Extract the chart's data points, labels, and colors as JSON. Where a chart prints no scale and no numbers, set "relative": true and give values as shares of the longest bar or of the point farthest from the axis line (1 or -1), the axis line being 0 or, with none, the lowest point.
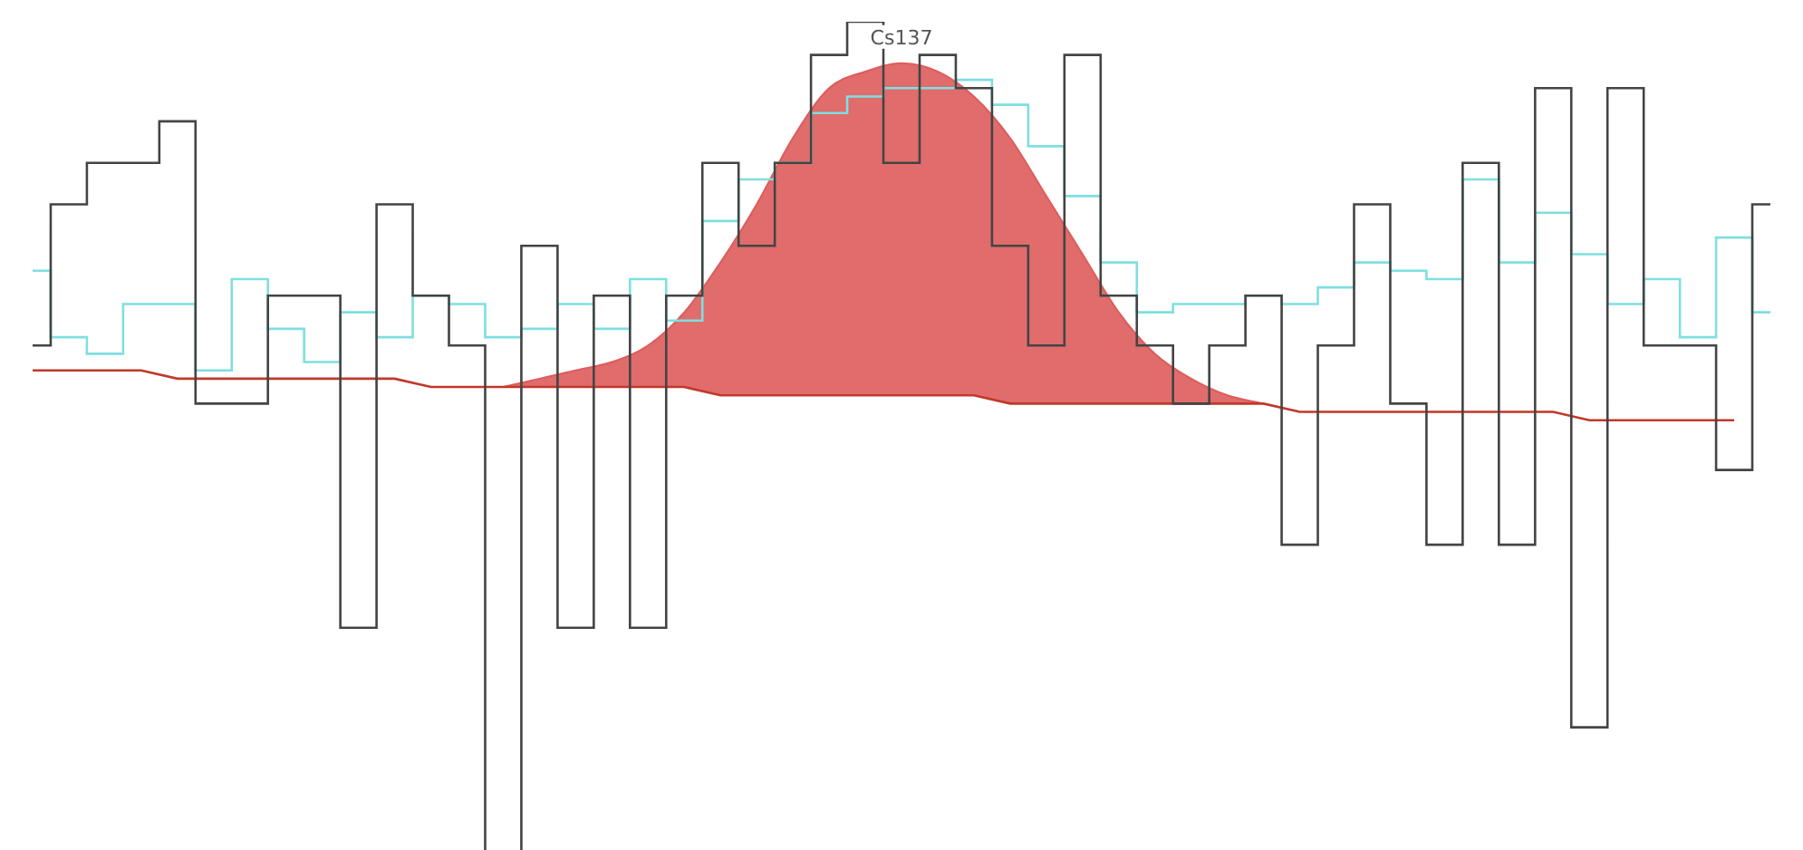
{
  "chart_data": {
    "type": "step",
    "relative": true,
    "categories": [
      null,
      null,
      null,
      null,
      null,
      null,
      null,
      null,
      null,
      null,
      null,
      null,
      null,
      null,
      null,
      null,
      null,
      null,
      null,
      null,
      null,
      null,
      null,
      null,
      null,
      null,
      null,
      null,
      null,
      null,
      null,
      null,
      null,
      null,
      null,
      null,
      null,
      null,
      null,
      null,
      null,
      null,
      null,
      null,
      null,
      null,
      null,
      null,
      null
    ],
    "annotations": [
      "Cs137"
    ],
    "series": [
      {
        "type": "area",
        "color": "#dd5c5c",
        "values": [
          null,
          null,
          null,
          null,
          null,
          null,
          null,
          null,
          null,
          null,
          null,
          null,
          null,
          0.56,
          0.57,
          0.58,
          0.59,
          0.61,
          0.65,
          0.71,
          0.78,
          0.86,
          0.92,
          0.94,
          0.95,
          0.94,
          0.91,
          0.86,
          0.79,
          0.72,
          0.65,
          0.6,
          0.57,
          0.55,
          0.54,
          null,
          null,
          null,
          null,
          null,
          null,
          null,
          null,
          null,
          null,
          null,
          null,
          null,
          null
        ]
      },
      {
        "color": "#444444",
        "values": [
          0.61,
          0.78,
          0.83,
          0.83,
          0.88,
          0.54,
          0.54,
          0.67,
          0.67,
          0.27,
          0.78,
          0.67,
          0.61,
          0,
          0.73,
          0.27,
          0.67,
          0.27,
          0.67,
          0.83,
          0.73,
          0.83,
          0.96,
          1,
          0.83,
          0.96,
          0.92,
          0.73,
          0.61,
          0.96,
          0.67,
          0.61,
          0.54,
          0.61,
          0.67,
          0.37,
          0.61,
          0.78,
          0.54,
          0.37,
          0.83,
          0.37,
          0.92,
          0.15,
          0.92,
          0.61,
          0.61,
          0.46,
          0.78
        ]
      },
      {
        "color": "#7fdfe0",
        "values": [
          0.7,
          0.62,
          0.6,
          0.66,
          0.66,
          0.58,
          0.69,
          0.63,
          0.59,
          0.65,
          0.62,
          0.67,
          0.66,
          0.62,
          0.63,
          0.66,
          0.63,
          0.69,
          0.64,
          0.76,
          0.81,
          0.83,
          0.89,
          0.91,
          0.92,
          0.92,
          0.93,
          0.9,
          0.85,
          0.79,
          0.71,
          0.65,
          0.66,
          0.66,
          0.67,
          0.66,
          0.68,
          0.71,
          0.7,
          0.69,
          0.81,
          0.71,
          0.77,
          0.72,
          0.66,
          0.69,
          0.62,
          0.74,
          0.65
        ]
      },
      {
        "type": "line",
        "color": "#c0392b",
        "values": [
          0.58,
          0.58,
          0.58,
          0.58,
          0.57,
          0.57,
          0.57,
          0.57,
          0.57,
          0.57,
          0.57,
          0.56,
          0.56,
          0.56,
          0.56,
          0.56,
          0.56,
          0.56,
          0.56,
          0.55,
          0.55,
          0.55,
          0.55,
          0.55,
          0.55,
          0.55,
          0.55,
          0.54,
          0.54,
          0.54,
          0.54,
          0.54,
          0.54,
          0.54,
          0.54,
          0.53,
          0.53,
          0.53,
          0.53,
          0.53,
          0.53,
          0.53,
          0.53,
          0.52,
          0.52,
          0.52,
          0.52,
          0.52,
          null
        ]
      }
    ]
  }
}
